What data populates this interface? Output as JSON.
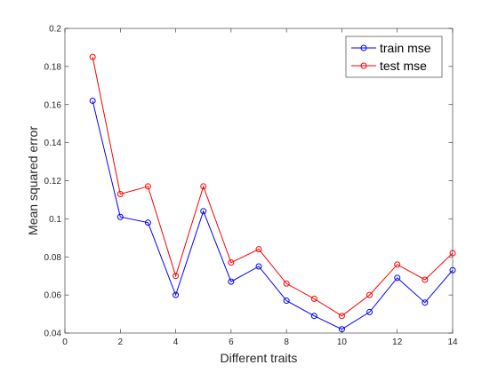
{
  "chart_data": {
    "type": "line",
    "title": "",
    "xlabel": "Different traits",
    "ylabel": "Mean squared error",
    "xlim": [
      0,
      14
    ],
    "ylim": [
      0.04,
      0.2
    ],
    "xticks": [
      0,
      2,
      4,
      6,
      8,
      10,
      12,
      14
    ],
    "yticks": [
      0.04,
      0.06,
      0.08,
      0.1,
      0.12,
      0.14,
      0.16,
      0.18,
      0.2
    ],
    "xtick_labels": [
      "0",
      "2",
      "4",
      "6",
      "8",
      "10",
      "12",
      "14"
    ],
    "ytick_labels": [
      "0.04",
      "0.06",
      "0.08",
      "0.1",
      "0.12",
      "0.14",
      "0.16",
      "0.18",
      "0.2"
    ],
    "grid": false,
    "legend_position": "top-right",
    "x": [
      1,
      2,
      3,
      4,
      5,
      6,
      7,
      8,
      9,
      10,
      11,
      12,
      13,
      14
    ],
    "series": [
      {
        "name": "train mse",
        "color": "#0000ff",
        "marker": "circle",
        "values": [
          0.162,
          0.101,
          0.098,
          0.06,
          0.104,
          0.067,
          0.075,
          0.057,
          0.049,
          0.042,
          0.051,
          0.069,
          0.056,
          0.073
        ]
      },
      {
        "name": "test mse",
        "color": "#ff0000",
        "marker": "circle",
        "values": [
          0.185,
          0.113,
          0.117,
          0.07,
          0.117,
          0.077,
          0.084,
          0.066,
          0.058,
          0.049,
          0.06,
          0.076,
          0.068,
          0.082
        ]
      }
    ]
  }
}
